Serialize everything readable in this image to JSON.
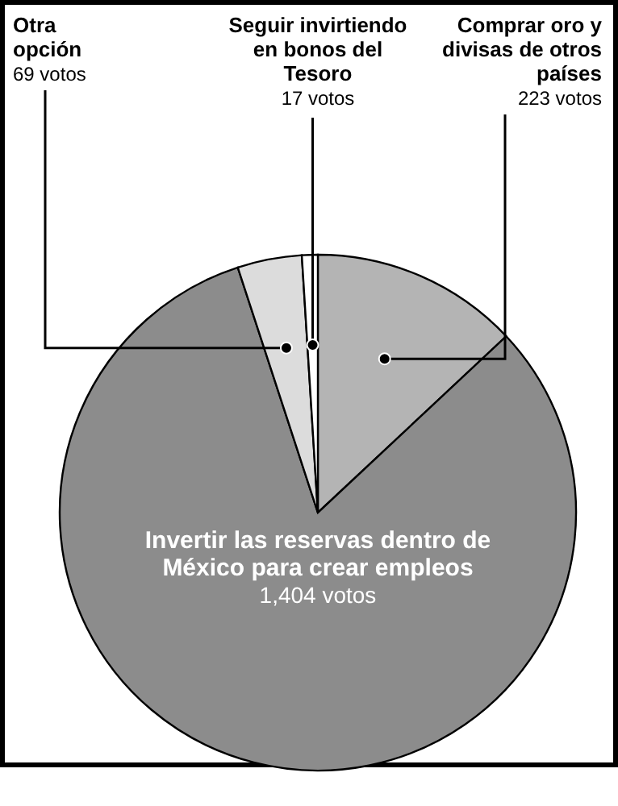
{
  "chart_data": {
    "type": "pie",
    "categories": [
      "Comprar oro y divisas de otros países",
      "Invertir las reservas dentro de México para crear empleos",
      "Otra opción",
      "Seguir invirtiendo en bonos del Tesoro"
    ],
    "values": [
      223,
      1404,
      69,
      17
    ],
    "value_labels": [
      "223 votos",
      "1,404 votos",
      "69 votos",
      "17 votos"
    ],
    "colors": [
      "#b4b4b4",
      "#8c8c8c",
      "#dcdcdc",
      "#ffffff"
    ]
  }
}
